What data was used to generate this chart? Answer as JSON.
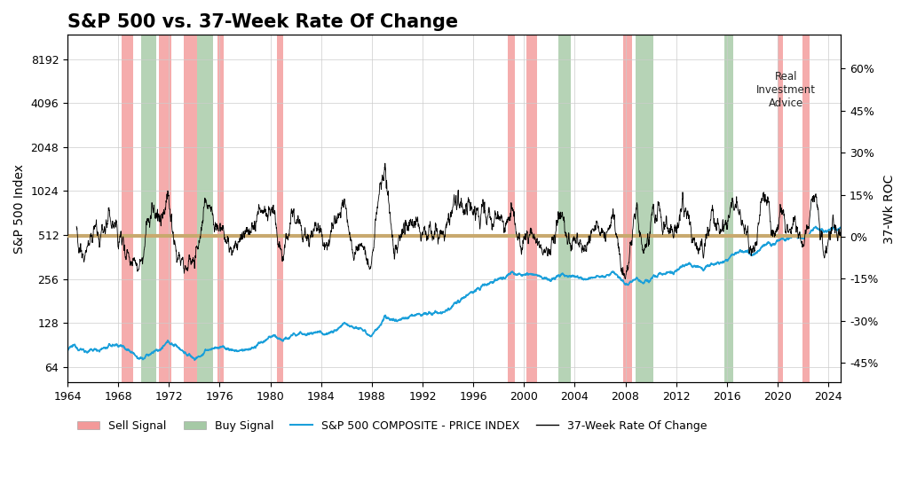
{
  "title": "S&P 500 vs. 37-Week Rate Of Change",
  "ylabel_left": "S&P 500 Index",
  "ylabel_right": "37-Wk ROC",
  "background_color": "#ffffff",
  "plot_bg_color": "#ffffff",
  "sp500_color": "#1a9fda",
  "roc_color": "#000000",
  "sell_color": "#f08080",
  "buy_color": "#8fbc8f",
  "zero_line_color": "#c8a96e",
  "title_fontsize": 15,
  "legend_fontsize": 9,
  "tick_fontsize": 9,
  "x_start": 1964,
  "x_end": 2025,
  "yticks_left": [
    64,
    128,
    256,
    512,
    1024,
    2048,
    4096,
    8192
  ],
  "yticks_right": [
    -0.45,
    -0.3,
    -0.15,
    0.0,
    0.15,
    0.3,
    0.45,
    0.6
  ],
  "ytick_right_labels": [
    "-45%",
    "-30%",
    "-15%",
    "0%",
    "15%",
    "30%",
    "45%",
    "60%"
  ],
  "xticks": [
    1964,
    1968,
    1972,
    1976,
    1980,
    1984,
    1988,
    1992,
    1996,
    2000,
    2004,
    2008,
    2012,
    2016,
    2020,
    2024
  ],
  "sell_signals": [
    [
      1968.3,
      1969.2
    ],
    [
      1971.2,
      1972.2
    ],
    [
      1973.2,
      1974.2
    ],
    [
      1975.8,
      1976.3
    ],
    [
      1980.5,
      1981.0
    ],
    [
      1998.7,
      1999.3
    ],
    [
      2000.2,
      2001.0
    ],
    [
      2007.8,
      2008.5
    ],
    [
      2020.0,
      2020.4
    ],
    [
      2022.0,
      2022.5
    ]
  ],
  "buy_signals": [
    [
      1969.8,
      1971.0
    ],
    [
      1974.2,
      1975.5
    ],
    [
      2002.7,
      2003.7
    ],
    [
      2008.8,
      2010.2
    ],
    [
      2015.8,
      2016.5
    ]
  ]
}
